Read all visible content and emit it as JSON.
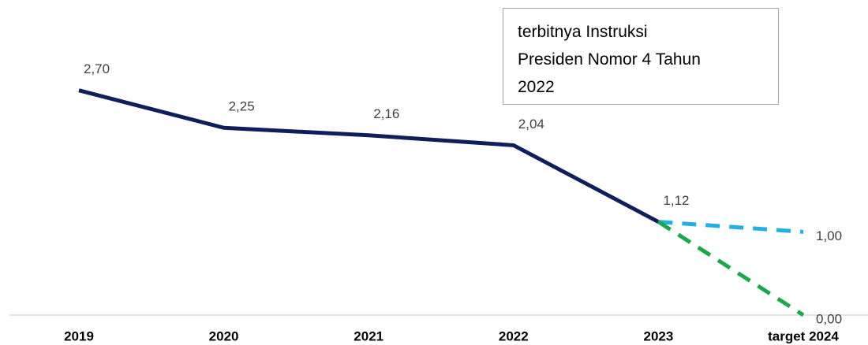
{
  "chart_data": {
    "type": "line",
    "annotation": [
      "terbitnya Instruksi",
      "Presiden Nomor 4 Tahun",
      "2022"
    ],
    "categories": [
      "2019",
      "2020",
      "2021",
      "2022",
      "2023",
      "target 2024"
    ],
    "series": [
      {
        "color": "#0e1f5b",
        "dashed": false,
        "values": [
          2.7,
          2.25,
          2.16,
          2.04,
          1.12,
          null
        ],
        "value_labels": [
          "2,70",
          "2,25",
          "2,16",
          "2,04",
          "1,12",
          null
        ]
      },
      {
        "color": "#1fb0e6",
        "dashed": true,
        "values": [
          null,
          null,
          null,
          null,
          1.12,
          1.0
        ],
        "value_labels": [
          null,
          null,
          null,
          null,
          null,
          "1,00"
        ]
      },
      {
        "color": "#19a94a",
        "dashed": true,
        "values": [
          null,
          null,
          null,
          null,
          1.12,
          0.0
        ],
        "value_labels": [
          null,
          null,
          null,
          null,
          null,
          "0,00"
        ]
      }
    ],
    "ylim": [
      0,
      3
    ]
  }
}
